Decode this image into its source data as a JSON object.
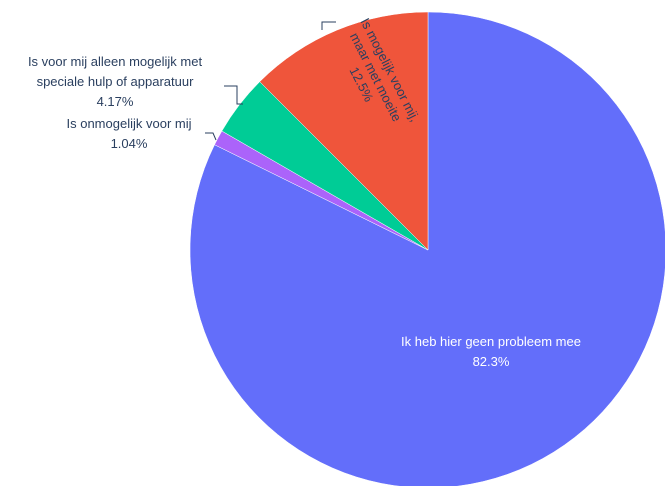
{
  "chart_data": {
    "type": "pie",
    "title": "",
    "slices": [
      {
        "label": "Ik heb hier geen probleem mee",
        "value": 82.3,
        "value_label": "82.3%",
        "color": "#636EFA",
        "label_position": "inside"
      },
      {
        "label": "Is onmogelijk voor mij",
        "value": 1.04,
        "value_label": "1.04%",
        "color": "#AB63FA",
        "label_position": "outside"
      },
      {
        "label": "Is voor mij alleen mogelijk met speciale hulp of apparatuur",
        "value": 4.17,
        "value_label": "4.17%",
        "color": "#00CC96",
        "label_position": "outside"
      },
      {
        "label": "Is mogelijk voor mij, maar met moeite",
        "value": 12.5,
        "value_label": "12.5%",
        "color": "#EF553B",
        "label_position": "inside-rotated"
      }
    ],
    "direction": "clockwise",
    "start": "top"
  }
}
